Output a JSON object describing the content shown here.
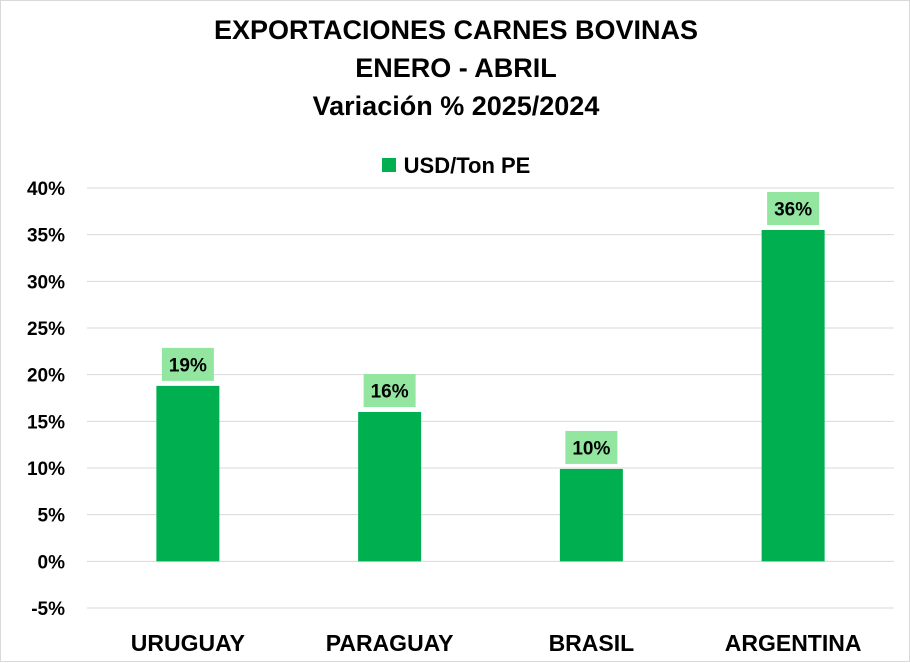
{
  "colors": {
    "bar": "#00b050",
    "label_bg": "#92e6a0",
    "grid": "#d9d9d9"
  },
  "chart_data": {
    "type": "bar",
    "title_lines": [
      "EXPORTACIONES CARNES BOVINAS",
      "ENERO - ABRIL",
      "Variación % 2025/2024"
    ],
    "categories": [
      "URUGUAY",
      "PARAGUAY",
      "BRASIL",
      "ARGENTINA"
    ],
    "series": [
      {
        "name": "USD/Ton PE",
        "values": [
          18.8,
          16.0,
          9.9,
          35.5
        ],
        "labels": [
          "19%",
          "16%",
          "10%",
          "36%"
        ]
      }
    ],
    "ylim": [
      -5,
      40
    ],
    "yticks": [
      -5,
      0,
      5,
      10,
      15,
      20,
      25,
      30,
      35,
      40
    ],
    "ytick_format": "percent",
    "grid": true,
    "legend_position": "top"
  }
}
